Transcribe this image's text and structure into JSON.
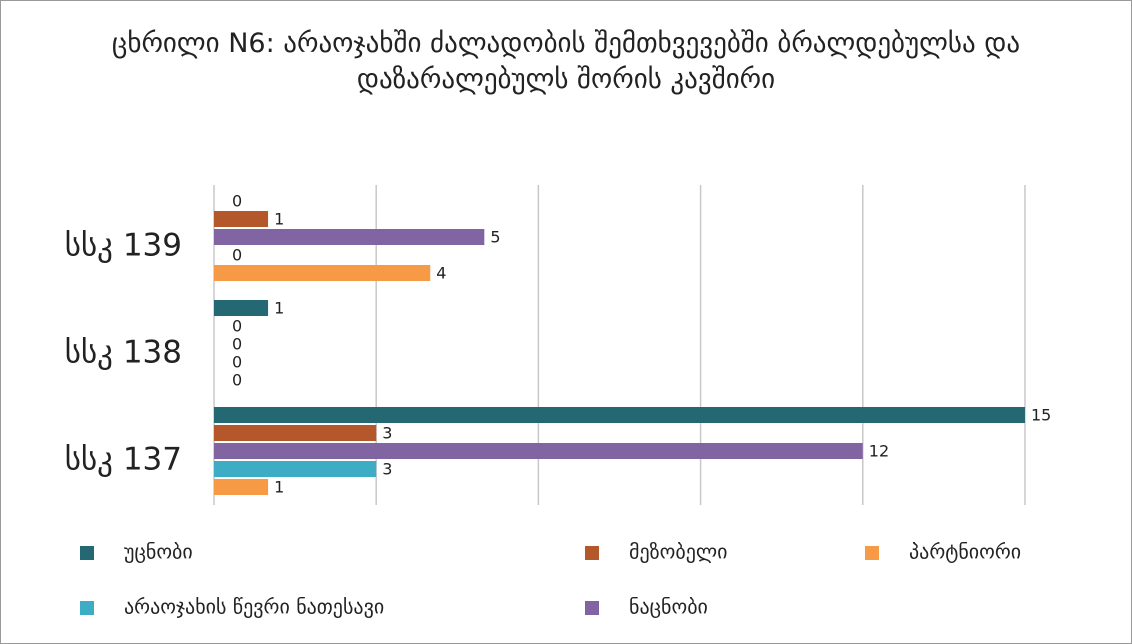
{
  "chart_data": {
    "type": "barh",
    "title": "ცხრილი N6: არაოჯახში ძალადობის შემთხვევებში ბრალდებულსა და დაზარალებულს შორის კავშირი",
    "categories": [
      "სსკ 139",
      "სსკ 138",
      "სსკ 137"
    ],
    "series": [
      {
        "name": "უცნობი",
        "color": "#236873",
        "values": [
          0,
          1,
          15
        ]
      },
      {
        "name": "მეზობელი",
        "color": "#b4572a",
        "values": [
          1,
          0,
          3
        ]
      },
      {
        "name": "ნაცნობი",
        "color": "#8165a3",
        "values": [
          5,
          0,
          12
        ]
      },
      {
        "name": "არაოჯახის წევრი ნათესავი",
        "color": "#3cadc5",
        "values": [
          0,
          0,
          3
        ]
      },
      {
        "name": "პარტნიორი",
        "color": "#f79a46",
        "values": [
          4,
          0,
          1
        ]
      }
    ],
    "xlim": [
      0,
      15.5
    ],
    "xticks": [
      0,
      3,
      6,
      9,
      12,
      15
    ],
    "grid": true
  }
}
